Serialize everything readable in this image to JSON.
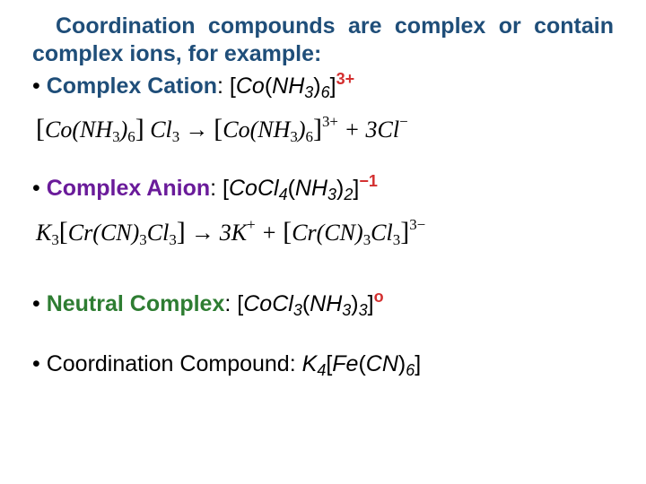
{
  "intro": "Coordination compounds are complex or contain complex ions, for example:",
  "items": {
    "cation": {
      "label": "Complex Cation",
      "formula_prefix": "[",
      "metal": "Co",
      "ligand": "NH",
      "ligand_h_sub": "3",
      "ligand_count": "6",
      "formula_suffix": "]",
      "charge": "3+"
    },
    "anion": {
      "label": "Complex Anion",
      "formula_prefix": "[",
      "metal": "CoCl",
      "metal_sub": "4",
      "ligand": "NH",
      "ligand_h_sub": "3",
      "ligand_count": "2",
      "formula_suffix": "]",
      "charge": "−1"
    },
    "neutral": {
      "label": "Neutral Complex",
      "formula_prefix": "[",
      "metal": "CoCl",
      "metal_sub": "3",
      "ligand": "NH",
      "ligand_h_sub": "3",
      "ligand_count": "3",
      "formula_suffix": "]",
      "charge": "o"
    },
    "compound": {
      "label": "Coordination Compound",
      "formula": "K",
      "k_sub": "4",
      "bracket_open": "[",
      "inner": "Fe",
      "paren_open": "(",
      "cn": "CN",
      "paren_close": ")",
      "cn_sub": "6",
      "bracket_close": "]"
    }
  },
  "equations": {
    "eq1": {
      "lhs_open": "[",
      "lhs_a": "Co",
      "lhs_p1": "(",
      "lhs_b": "NH",
      "lhs_b_sub": "3",
      "lhs_p2": ")",
      "lhs_b_count": "6",
      "lhs_close": "]",
      "lhs_space": " ",
      "lhs_c": "Cl",
      "lhs_c_sub": "3",
      "arrow": "→",
      "rhs_open": "[",
      "rhs_a": "Co",
      "rhs_p1": "(",
      "rhs_b": "NH",
      "rhs_b_sub": "3",
      "rhs_p2": ")",
      "rhs_b_count": "6",
      "rhs_close": "]",
      "rhs_sup": "3+",
      "plus": " + ",
      "rhs_d_coef": "3",
      "rhs_d": "Cl",
      "rhs_d_sup": "−"
    },
    "eq2": {
      "lhs_a": "K",
      "lhs_a_sub": "3",
      "lhs_open": "[",
      "lhs_b": "Cr",
      "lhs_p1": "(",
      "lhs_c": "CN",
      "lhs_p2": ")",
      "lhs_c_sub": "3",
      "lhs_d": "Cl",
      "lhs_d_sub": "3",
      "lhs_close": "]",
      "arrow": "→",
      "rhs_a_coef": "3",
      "rhs_a": "K",
      "rhs_a_sup": "+",
      "plus": " + ",
      "rhs_open": "[",
      "rhs_b": "Cr",
      "rhs_p1": "(",
      "rhs_c": "CN",
      "rhs_p2": ")",
      "rhs_c_sub": "3",
      "rhs_d": "Cl",
      "rhs_d_sub": "3",
      "rhs_close": "]",
      "rhs_sup": "3−"
    }
  },
  "colors": {
    "intro_blue": "#1f4e79",
    "label_blue": "#1f4e79",
    "label_purple": "#6a1b9a",
    "label_green": "#2e7d32",
    "charge_red": "#d32f2f"
  }
}
